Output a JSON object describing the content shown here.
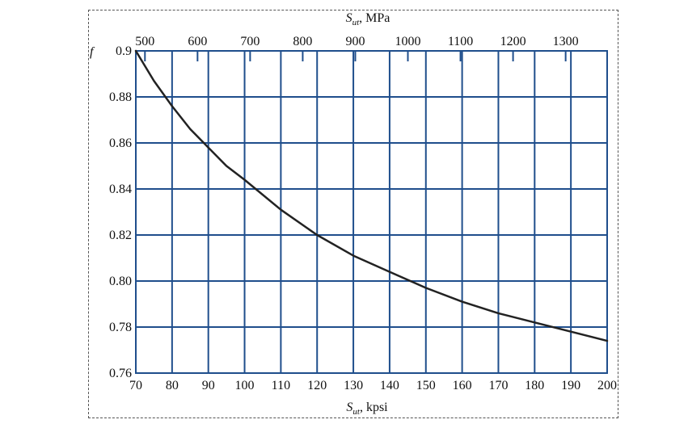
{
  "chart_data": {
    "type": "line",
    "title": "",
    "ylabel": "f",
    "xlabel_bottom": {
      "symbol": "S",
      "subscript": "ut",
      "unit": ", kpsi"
    },
    "xlabel_top": {
      "symbol": "S",
      "subscript": "ut",
      "unit": ", MPa"
    },
    "xlim": [
      70,
      200
    ],
    "ylim": [
      0.76,
      0.9
    ],
    "x_ticks": [
      70,
      80,
      90,
      100,
      110,
      120,
      130,
      140,
      150,
      160,
      170,
      180,
      190,
      200
    ],
    "y_ticks": [
      0.76,
      0.78,
      0.8,
      0.82,
      0.84,
      0.86,
      0.88,
      0.9
    ],
    "y_tick_labels": [
      "0.76",
      "0.78",
      "0.80",
      "0.82",
      "0.84",
      "0.86",
      "0.88",
      "0.9"
    ],
    "top_axis_mpa_ticks": [
      500,
      600,
      700,
      800,
      900,
      1000,
      1100,
      1200,
      1300
    ],
    "mpa_per_kpsi": 6.89476,
    "grid": true,
    "grid_color": "#1f4e8c",
    "line_color": "#222222",
    "series": [
      {
        "name": "f",
        "x": [
          70,
          75,
          80,
          85,
          90,
          95,
          100,
          110,
          120,
          130,
          140,
          150,
          160,
          170,
          180,
          190,
          200
        ],
        "y": [
          0.9,
          0.887,
          0.876,
          0.866,
          0.858,
          0.85,
          0.844,
          0.831,
          0.82,
          0.811,
          0.804,
          0.797,
          0.791,
          0.786,
          0.782,
          0.778,
          0.774
        ]
      }
    ]
  }
}
